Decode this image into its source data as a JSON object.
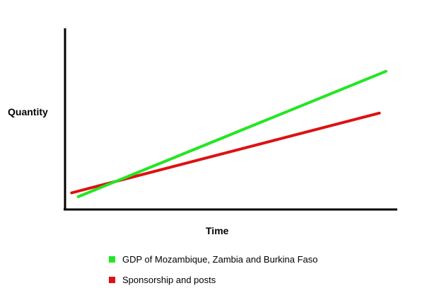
{
  "chart_data": {
    "type": "line",
    "xlabel": "Time",
    "ylabel": "Quantity",
    "xlim": [
      0,
      100
    ],
    "ylim": [
      0,
      100
    ],
    "grid": false,
    "legend_position": "bottom",
    "series": [
      {
        "name": "GDP of Mozambique, Zambia and Burkina Faso",
        "color": "#22e622",
        "x": [
          4,
          97
        ],
        "y": [
          9,
          108
        ]
      },
      {
        "name": "Sponsorship and posts",
        "color": "#dd1111",
        "x": [
          2,
          95
        ],
        "y": [
          12,
          75
        ]
      }
    ]
  }
}
